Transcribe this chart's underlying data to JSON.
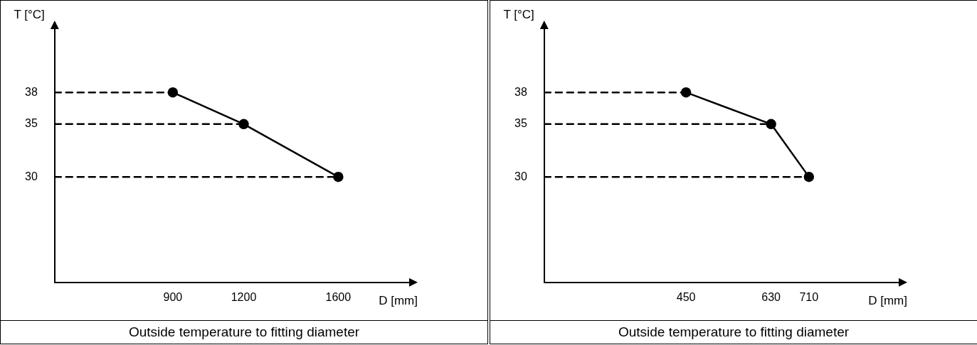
{
  "chart_data": [
    {
      "type": "line",
      "title": "Outside temperature to fitting diameter",
      "xlabel": "D [mm]",
      "ylabel": "T [°C]",
      "xlim": [
        400,
        1900
      ],
      "xticks": [
        900,
        1200,
        1600
      ],
      "ylim": [
        20,
        44
      ],
      "yticks": [
        30,
        35,
        38
      ],
      "grid": false,
      "legend": false,
      "series": [
        {
          "marker": "circle",
          "color": "#000000",
          "x": [
            900,
            1200,
            1600
          ],
          "values": [
            38,
            35,
            30
          ]
        },
        {
          "line_style": "dashed",
          "color": "#000000",
          "x": [
            400,
            900
          ],
          "values": [
            38,
            38
          ]
        },
        {
          "line_style": "dashed",
          "color": "#000000",
          "x": [
            400,
            1200
          ],
          "values": [
            35,
            35
          ]
        },
        {
          "line_style": "dashed",
          "color": "#000000",
          "x": [
            400,
            1600
          ],
          "values": [
            30,
            30
          ]
        }
      ]
    },
    {
      "type": "line",
      "title": "Outside temperature to fitting diameter",
      "xlabel": "D [mm]",
      "ylabel": "T [°C]",
      "xlim": [
        150,
        900
      ],
      "xticks": [
        450,
        630,
        710
      ],
      "ylim": [
        20,
        44
      ],
      "yticks": [
        30,
        35,
        38
      ],
      "grid": false,
      "legend": false,
      "series": [
        {
          "marker": "circle",
          "color": "#000000",
          "x": [
            450,
            630,
            710
          ],
          "values": [
            38,
            35,
            30
          ]
        },
        {
          "line_style": "dashed",
          "color": "#000000",
          "x": [
            150,
            450
          ],
          "values": [
            38,
            38
          ]
        },
        {
          "line_style": "dashed",
          "color": "#000000",
          "x": [
            150,
            630
          ],
          "values": [
            35,
            35
          ]
        },
        {
          "line_style": "dashed",
          "color": "#000000",
          "x": [
            150,
            710
          ],
          "values": [
            30,
            30
          ]
        }
      ]
    }
  ]
}
